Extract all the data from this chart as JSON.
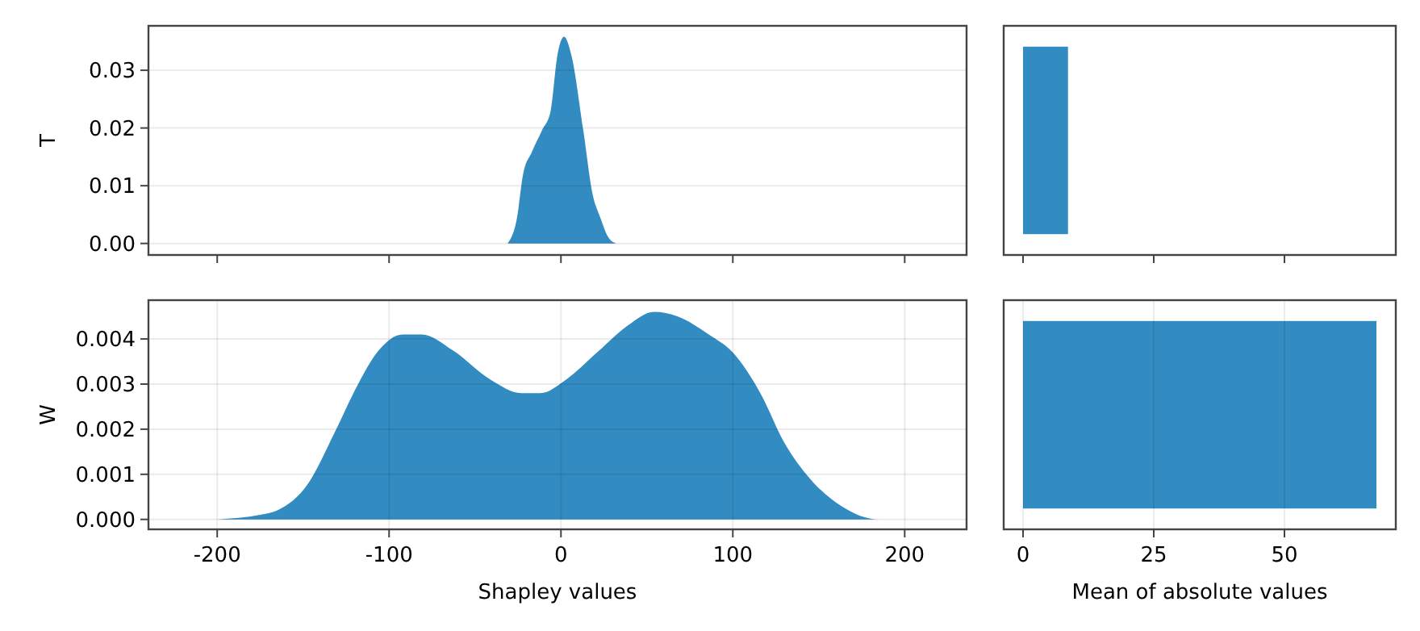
{
  "chart_data": [
    {
      "type": "area",
      "ylabel": "T",
      "x": [
        -31,
        -25.6,
        -22,
        -17,
        -11,
        -6,
        -2,
        1.8,
        6,
        13,
        18.3,
        23,
        27.5,
        32
      ],
      "series": [
        {
          "color": "#328bc1",
          "values": [
            0,
            0.0044,
            0.012,
            0.0158,
            0.0196,
            0.0229,
            0.0327,
            0.0358,
            0.0327,
            0.0196,
            0.0087,
            0.0044,
            0.0011,
            0
          ]
        }
      ],
      "xlim": [
        -240,
        236
      ],
      "xticks": [
        -200,
        -100,
        0,
        100,
        200
      ],
      "ylim": [
        -0.002,
        0.0377
      ],
      "yticks": [
        {
          "value": 0,
          "label": "0.00"
        },
        {
          "value": 0.01,
          "label": "0.01"
        },
        {
          "value": 0.02,
          "label": "0.02"
        },
        {
          "value": 0.03,
          "label": "0.03"
        }
      ],
      "grid": "y",
      "tick_labels": "y"
    },
    {
      "type": "bar",
      "orientation": "horizontal",
      "categories": [
        null
      ],
      "values": [
        8.6
      ],
      "color": "#328bc1",
      "xlim": [
        -3.7,
        71.3
      ],
      "xticks": [
        0,
        25,
        50
      ],
      "grid": false,
      "tick_labels": false
    },
    {
      "type": "area",
      "ylabel": "W",
      "xlabel": "Shapley values",
      "x": [
        -200,
        -175,
        -165,
        -147,
        -132,
        -118,
        -107,
        -92,
        -81,
        -63,
        -41,
        -23,
        -12,
        3,
        21,
        39,
        54,
        68,
        86,
        100,
        116,
        130,
        145,
        163,
        185,
        200
      ],
      "series": [
        {
          "color": "#328bc1",
          "values": [
            0,
            0.0001,
            0.0002,
            0.0008,
            0.0019,
            0.003,
            0.0037,
            0.0041,
            0.0041,
            0.00375,
            0.0031,
            0.0028,
            0.0028,
            0.0031,
            0.0037,
            0.0043,
            0.0046,
            0.0045,
            0.0041,
            0.0037,
            0.0028,
            0.0017,
            0.0009,
            0.0003,
            0,
            0
          ]
        }
      ],
      "xlim": [
        -240,
        236
      ],
      "xticks": [
        -200,
        -100,
        0,
        100,
        200
      ],
      "ylim": [
        -0.00022,
        0.00486
      ],
      "yticks": [
        {
          "value": 0,
          "label": "0.000"
        },
        {
          "value": 0.001,
          "label": "0.001"
        },
        {
          "value": 0.002,
          "label": "0.002"
        },
        {
          "value": 0.003,
          "label": "0.003"
        },
        {
          "value": 0.004,
          "label": "0.004"
        }
      ],
      "grid": true
    },
    {
      "type": "bar",
      "orientation": "horizontal",
      "xlabel": "Mean of absolute values",
      "categories": [
        null
      ],
      "values": [
        67.6
      ],
      "color": "#328bc1",
      "xlim": [
        -3.7,
        71.3
      ],
      "xticks": [
        0,
        25,
        50
      ],
      "grid": "x",
      "tick_labels": "x"
    }
  ]
}
